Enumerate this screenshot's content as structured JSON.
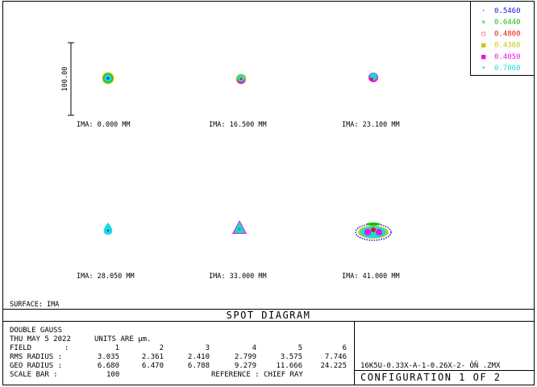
{
  "legend": [
    {
      "marker": "·",
      "label": "0.5460",
      "color": "#1414e6"
    },
    {
      "marker": "×",
      "label": "0.6440",
      "color": "#12c012"
    },
    {
      "marker": "○",
      "label": "0.4800",
      "color": "#e61414"
    },
    {
      "marker": "■",
      "label": "0.4360",
      "color": "#c8c814"
    },
    {
      "marker": "■",
      "label": "0.4050",
      "color": "#e614e6"
    },
    {
      "marker": "•",
      "label": "0.7060",
      "color": "#14dcdc"
    }
  ],
  "scale_bar_label": "100.00",
  "spots": [
    {
      "label": "IMA: 0.000 MM",
      "shape": "round"
    },
    {
      "label": "IMA: 16.500 MM",
      "shape": "round"
    },
    {
      "label": "IMA: 23.100 MM",
      "shape": "round"
    },
    {
      "label": "IMA: 28.050 MM",
      "shape": "drop"
    },
    {
      "label": "IMA: 33.000 MM",
      "shape": "triangle"
    },
    {
      "label": "IMA: 41.000 MM",
      "shape": "flare"
    }
  ],
  "surface": "SURFACE: IMA",
  "title": "SPOT DIAGRAM",
  "info": {
    "lens": "DOUBLE GAUSS",
    "date": "THU MAY 5 2022",
    "units": "UNITS ARE µm.",
    "field_label": "FIELD",
    "field_sep": ":",
    "fields": [
      "1",
      "2",
      "3",
      "4",
      "5",
      "6"
    ],
    "rms_label": "RMS RADIUS :",
    "rms": [
      "3.035",
      "2.361",
      "2.410",
      "2.799",
      "3.575",
      "7.746"
    ],
    "geo_label": "GEO RADIUS :",
    "geo": [
      "6.680",
      "6.470",
      "6.788",
      "9.279",
      "11.666",
      "24.225"
    ],
    "scale_label": "SCALE BAR  :",
    "scale_value": "100",
    "reference": "REFERENCE  : CHIEF RAY"
  },
  "file_name": "16K5U-0.33X-A-1-0.26X-2- ÔÑ     .ZMX",
  "configuration": "CONFIGURATION  1  OF  2"
}
